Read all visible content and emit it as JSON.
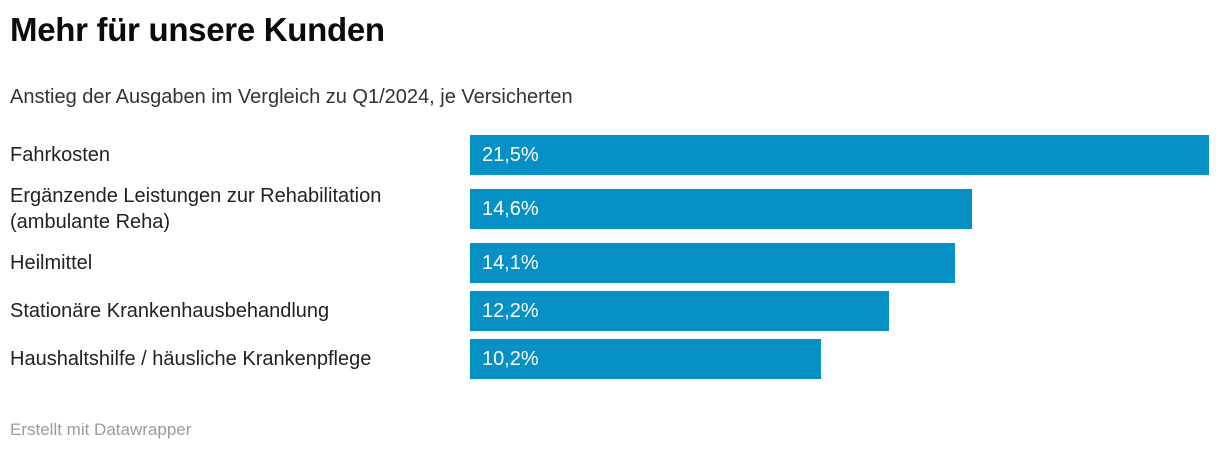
{
  "header": {
    "title": "Mehr für unsere Kunden",
    "subtitle": "Anstieg der Ausgaben im Vergleich zu Q1/2024, je Versicherten"
  },
  "footer": {
    "attribution": "Erstellt mit Datawrapper"
  },
  "colors": {
    "bar": "#0591c6",
    "bar_value_label": "#ffffff",
    "title_text": "#0b0b0b",
    "body_text": "#222222",
    "subtitle_text": "#333333",
    "footer_text": "#9b9b9b",
    "background": "#ffffff"
  },
  "chart_data": {
    "type": "bar",
    "orientation": "horizontal",
    "title": "Mehr für unsere Kunden",
    "subtitle": "Anstieg der Ausgaben im Vergleich zu Q1/2024, je Versicherten",
    "categories": [
      "Fahrkosten",
      "Ergänzende Leistungen zur Rehabilitation (ambulante Reha)",
      "Heilmittel",
      "Stationäre Krankenhausbehandlung",
      "Haushaltshilfe / häusliche Krankenpflege"
    ],
    "values": [
      21.5,
      14.6,
      14.1,
      12.2,
      10.2
    ],
    "value_labels": [
      "21,5%",
      "14,6%",
      "14,1%",
      "12,2%",
      "10,2%"
    ],
    "unit": "%",
    "xlim": [
      0,
      21.5
    ],
    "grid": false,
    "axis_visible": false,
    "value_labels_position": "inside-left",
    "legend": "none"
  }
}
